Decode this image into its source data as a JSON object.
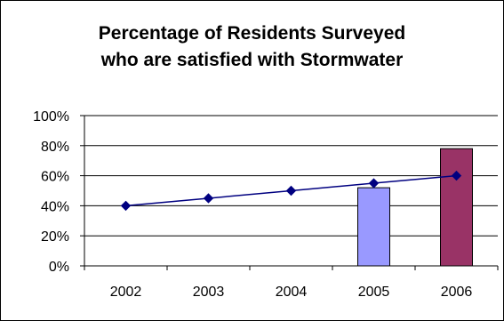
{
  "chart_data": {
    "type": "bar+line",
    "title_lines": [
      "Percentage of Residents Surveyed",
      "who are satisfied with Stormwater"
    ],
    "categories": [
      "2002",
      "2003",
      "2004",
      "2005",
      "2006"
    ],
    "ylim": [
      0,
      100
    ],
    "y_ticks": [
      "0%",
      "20%",
      "40%",
      "60%",
      "80%",
      "100%"
    ],
    "grid": true,
    "legend": "none",
    "bars": {
      "values": [
        null,
        null,
        null,
        52,
        78
      ],
      "colors": [
        null,
        null,
        null,
        "#9999ff",
        "#993366"
      ]
    },
    "line": {
      "values": [
        40,
        45,
        50,
        55,
        60
      ],
      "color": "#000080",
      "marker": "diamond"
    }
  }
}
